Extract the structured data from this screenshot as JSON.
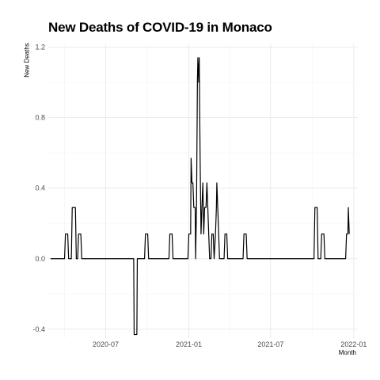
{
  "chart_data": {
    "type": "line",
    "title": "New Deaths of COVID-19 in Monaco",
    "xlabel": "Month",
    "ylabel": "New Deaths",
    "ylim": [
      -0.45,
      1.22
    ],
    "y_ticks": [
      -0.4,
      0.0,
      0.4,
      0.8,
      1.2
    ],
    "y_tick_labels": [
      "-0.4",
      "0.0",
      "0.4",
      "0.8",
      "1.2"
    ],
    "x_ticks": [
      "2020-07-01",
      "2021-01-01",
      "2021-07-01",
      "2022-01-01"
    ],
    "x_tick_labels": [
      "2020-07",
      "2021-01",
      "2021-07",
      "2022-01"
    ],
    "grid": true,
    "legend": "none",
    "series": [
      {
        "color": "#000000",
        "points": [
          [
            "2020-03-01",
            0
          ],
          [
            "2020-04-01",
            0
          ],
          [
            "2020-04-03",
            0.14
          ],
          [
            "2020-04-08",
            0.14
          ],
          [
            "2020-04-10",
            0
          ],
          [
            "2020-04-16",
            0
          ],
          [
            "2020-04-18",
            0.29
          ],
          [
            "2020-04-25",
            0.29
          ],
          [
            "2020-04-27",
            0
          ],
          [
            "2020-04-30",
            0
          ],
          [
            "2020-05-02",
            0.14
          ],
          [
            "2020-05-07",
            0.14
          ],
          [
            "2020-05-09",
            0
          ],
          [
            "2020-09-01",
            0
          ],
          [
            "2020-09-02",
            -0.43
          ],
          [
            "2020-09-08",
            -0.43
          ],
          [
            "2020-09-09",
            0
          ],
          [
            "2020-09-25",
            0
          ],
          [
            "2020-09-27",
            0.14
          ],
          [
            "2020-10-02",
            0.14
          ],
          [
            "2020-10-04",
            0
          ],
          [
            "2020-11-18",
            0
          ],
          [
            "2020-11-20",
            0.14
          ],
          [
            "2020-11-25",
            0.14
          ],
          [
            "2020-11-27",
            0
          ],
          [
            "2020-12-30",
            0
          ],
          [
            "2021-01-01",
            0.14
          ],
          [
            "2021-01-05",
            0.14
          ],
          [
            "2021-01-06",
            0.57
          ],
          [
            "2021-01-08",
            0.43
          ],
          [
            "2021-01-10",
            0.43
          ],
          [
            "2021-01-12",
            0.29
          ],
          [
            "2021-01-15",
            0.29
          ],
          [
            "2021-01-16",
            0
          ],
          [
            "2021-01-18",
            0.29
          ],
          [
            "2021-01-20",
            1.0
          ],
          [
            "2021-01-21",
            1.14
          ],
          [
            "2021-01-23",
            1.0
          ],
          [
            "2021-01-24",
            1.14
          ],
          [
            "2021-01-26",
            0.57
          ],
          [
            "2021-01-28",
            0.14
          ],
          [
            "2021-01-30",
            0.29
          ],
          [
            "2021-02-01",
            0.43
          ],
          [
            "2021-02-03",
            0.14
          ],
          [
            "2021-02-05",
            0.29
          ],
          [
            "2021-02-08",
            0.29
          ],
          [
            "2021-02-10",
            0.43
          ],
          [
            "2021-02-12",
            0.29
          ],
          [
            "2021-02-14",
            0.14
          ],
          [
            "2021-02-16",
            0
          ],
          [
            "2021-02-19",
            0
          ],
          [
            "2021-02-21",
            0.14
          ],
          [
            "2021-02-24",
            0.14
          ],
          [
            "2021-02-26",
            0
          ],
          [
            "2021-03-01",
            0.14
          ],
          [
            "2021-03-03",
            0.29
          ],
          [
            "2021-03-04",
            0.43
          ],
          [
            "2021-03-06",
            0.29
          ],
          [
            "2021-03-08",
            0.14
          ],
          [
            "2021-03-10",
            0
          ],
          [
            "2021-03-20",
            0
          ],
          [
            "2021-03-22",
            0.14
          ],
          [
            "2021-03-26",
            0.14
          ],
          [
            "2021-03-28",
            0
          ],
          [
            "2021-05-01",
            0
          ],
          [
            "2021-05-03",
            0.14
          ],
          [
            "2021-05-08",
            0.14
          ],
          [
            "2021-05-10",
            0
          ],
          [
            "2021-10-05",
            0
          ],
          [
            "2021-10-07",
            0.29
          ],
          [
            "2021-10-12",
            0.29
          ],
          [
            "2021-10-14",
            0
          ],
          [
            "2021-10-20",
            0
          ],
          [
            "2021-10-22",
            0.14
          ],
          [
            "2021-10-27",
            0.14
          ],
          [
            "2021-10-29",
            0
          ],
          [
            "2021-12-14",
            0
          ],
          [
            "2021-12-16",
            0.14
          ],
          [
            "2021-12-19",
            0.14
          ],
          [
            "2021-12-20",
            0.29
          ],
          [
            "2021-12-22",
            0.14
          ]
        ]
      }
    ]
  }
}
